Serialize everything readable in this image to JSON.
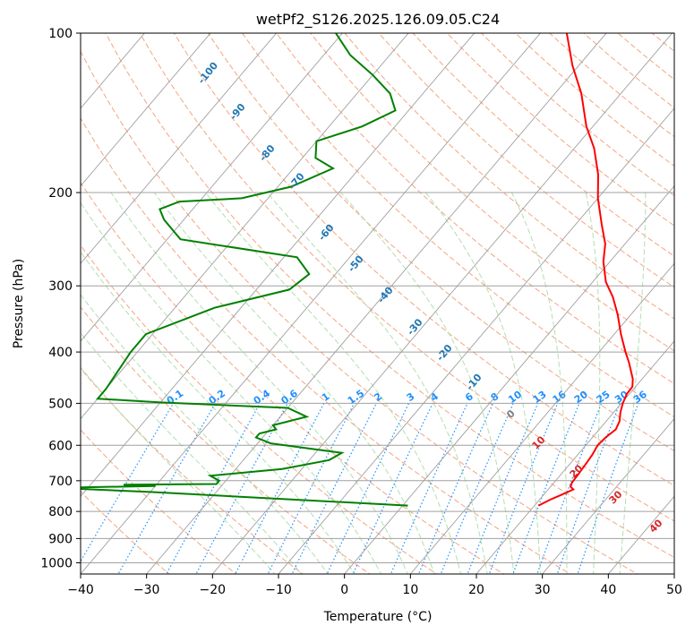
{
  "chart_data": {
    "type": "line",
    "diagram": "skew-t log-p",
    "title": "wetPf2_S126.2025.126.09.05.C24",
    "xlabel": "Temperature (°C)",
    "ylabel": "Pressure (hPa)",
    "xlim": [
      -40,
      50
    ],
    "ylim": [
      1050,
      100
    ],
    "y_scale": "log",
    "x_ticks": [
      -40,
      -30,
      -20,
      -10,
      0,
      10,
      20,
      30,
      40,
      50
    ],
    "y_ticks": [
      100,
      200,
      300,
      400,
      500,
      600,
      700,
      800,
      900,
      1000
    ],
    "grid": true,
    "series": [
      {
        "color": "#ff0000",
        "values": [
          [
            20.6,
            780
          ],
          [
            21.6,
            760
          ],
          [
            22.6,
            745
          ],
          [
            23.8,
            727
          ],
          [
            23.0,
            718
          ],
          [
            22.7,
            705
          ],
          [
            22.6,
            680
          ],
          [
            22.4,
            650
          ],
          [
            22.2,
            625
          ],
          [
            21.8,
            600
          ],
          [
            22.0,
            580
          ],
          [
            22.5,
            560
          ],
          [
            22.0,
            540
          ],
          [
            21.0,
            520
          ],
          [
            20.2,
            500
          ],
          [
            19.6,
            480
          ],
          [
            19.5,
            465
          ],
          [
            18.6,
            450
          ],
          [
            16.0,
            420
          ],
          [
            14.0,
            400
          ],
          [
            11.0,
            370
          ],
          [
            8.0,
            340
          ],
          [
            5.0,
            315
          ],
          [
            2.0,
            295
          ],
          [
            -1.0,
            270
          ],
          [
            -3.0,
            250
          ],
          [
            -6.0,
            230
          ],
          [
            -10.0,
            205
          ],
          [
            -13.0,
            185
          ],
          [
            -17.0,
            165
          ],
          [
            -21.0,
            150
          ],
          [
            -26.0,
            130
          ],
          [
            -31.0,
            115
          ],
          [
            -36.0,
            100
          ]
        ]
      },
      {
        "color": "#008000",
        "values": [
          [
            0.8,
            780
          ],
          [
            -40.0,
            735
          ],
          [
            -55.0,
            722
          ],
          [
            -40.0,
            716
          ],
          [
            -45.0,
            712
          ],
          [
            -31.0,
            710
          ],
          [
            -31.0,
            700
          ],
          [
            -33.0,
            685
          ],
          [
            -23.0,
            665
          ],
          [
            -17.0,
            640
          ],
          [
            -16.0,
            620
          ],
          [
            -28.0,
            595
          ],
          [
            -31.0,
            580
          ],
          [
            -31.0,
            570
          ],
          [
            -29.0,
            560
          ],
          [
            -30.0,
            550
          ],
          [
            -26.0,
            530
          ],
          [
            -30.0,
            510
          ],
          [
            -50.0,
            498
          ],
          [
            -60.0,
            490
          ],
          [
            -60.0,
            470
          ],
          [
            -61.0,
            400
          ],
          [
            -61.0,
            370
          ],
          [
            -54.0,
            330
          ],
          [
            -45.0,
            305
          ],
          [
            -44.0,
            285
          ],
          [
            -48.0,
            265
          ],
          [
            -68.0,
            245
          ],
          [
            -73.0,
            225
          ],
          [
            -75.0,
            215
          ],
          [
            -73.0,
            208
          ],
          [
            -64.0,
            205
          ],
          [
            -58.0,
            195
          ],
          [
            -54.0,
            180
          ],
          [
            -58.0,
            172
          ],
          [
            -60.0,
            160
          ],
          [
            -55.0,
            150
          ],
          [
            -52.0,
            140
          ],
          [
            -55.0,
            130
          ],
          [
            -60.0,
            120
          ],
          [
            -66.0,
            110
          ],
          [
            -71.0,
            100
          ]
        ]
      }
    ],
    "dry_adiabat_labels": [
      -100,
      -90,
      -80,
      -70,
      -60,
      -50,
      -40,
      -30,
      -20,
      -10
    ],
    "moist_adiabat_labels": [
      0,
      10,
      20,
      30,
      40
    ],
    "mixing_ratio_labels": [
      0.1,
      0.2,
      0.4,
      0.6,
      1,
      1.5,
      2,
      3,
      4,
      6,
      8,
      10,
      13,
      16,
      20,
      25,
      30,
      36
    ],
    "colors": {
      "temperature": "#ff0000",
      "dewpoint": "#008000",
      "dry_adiabats": "#f4a582",
      "moist_adiabats": "#b2dfb0",
      "mixing_ratio": "#1e90ff",
      "isotherms": "#a0a0a0"
    }
  }
}
